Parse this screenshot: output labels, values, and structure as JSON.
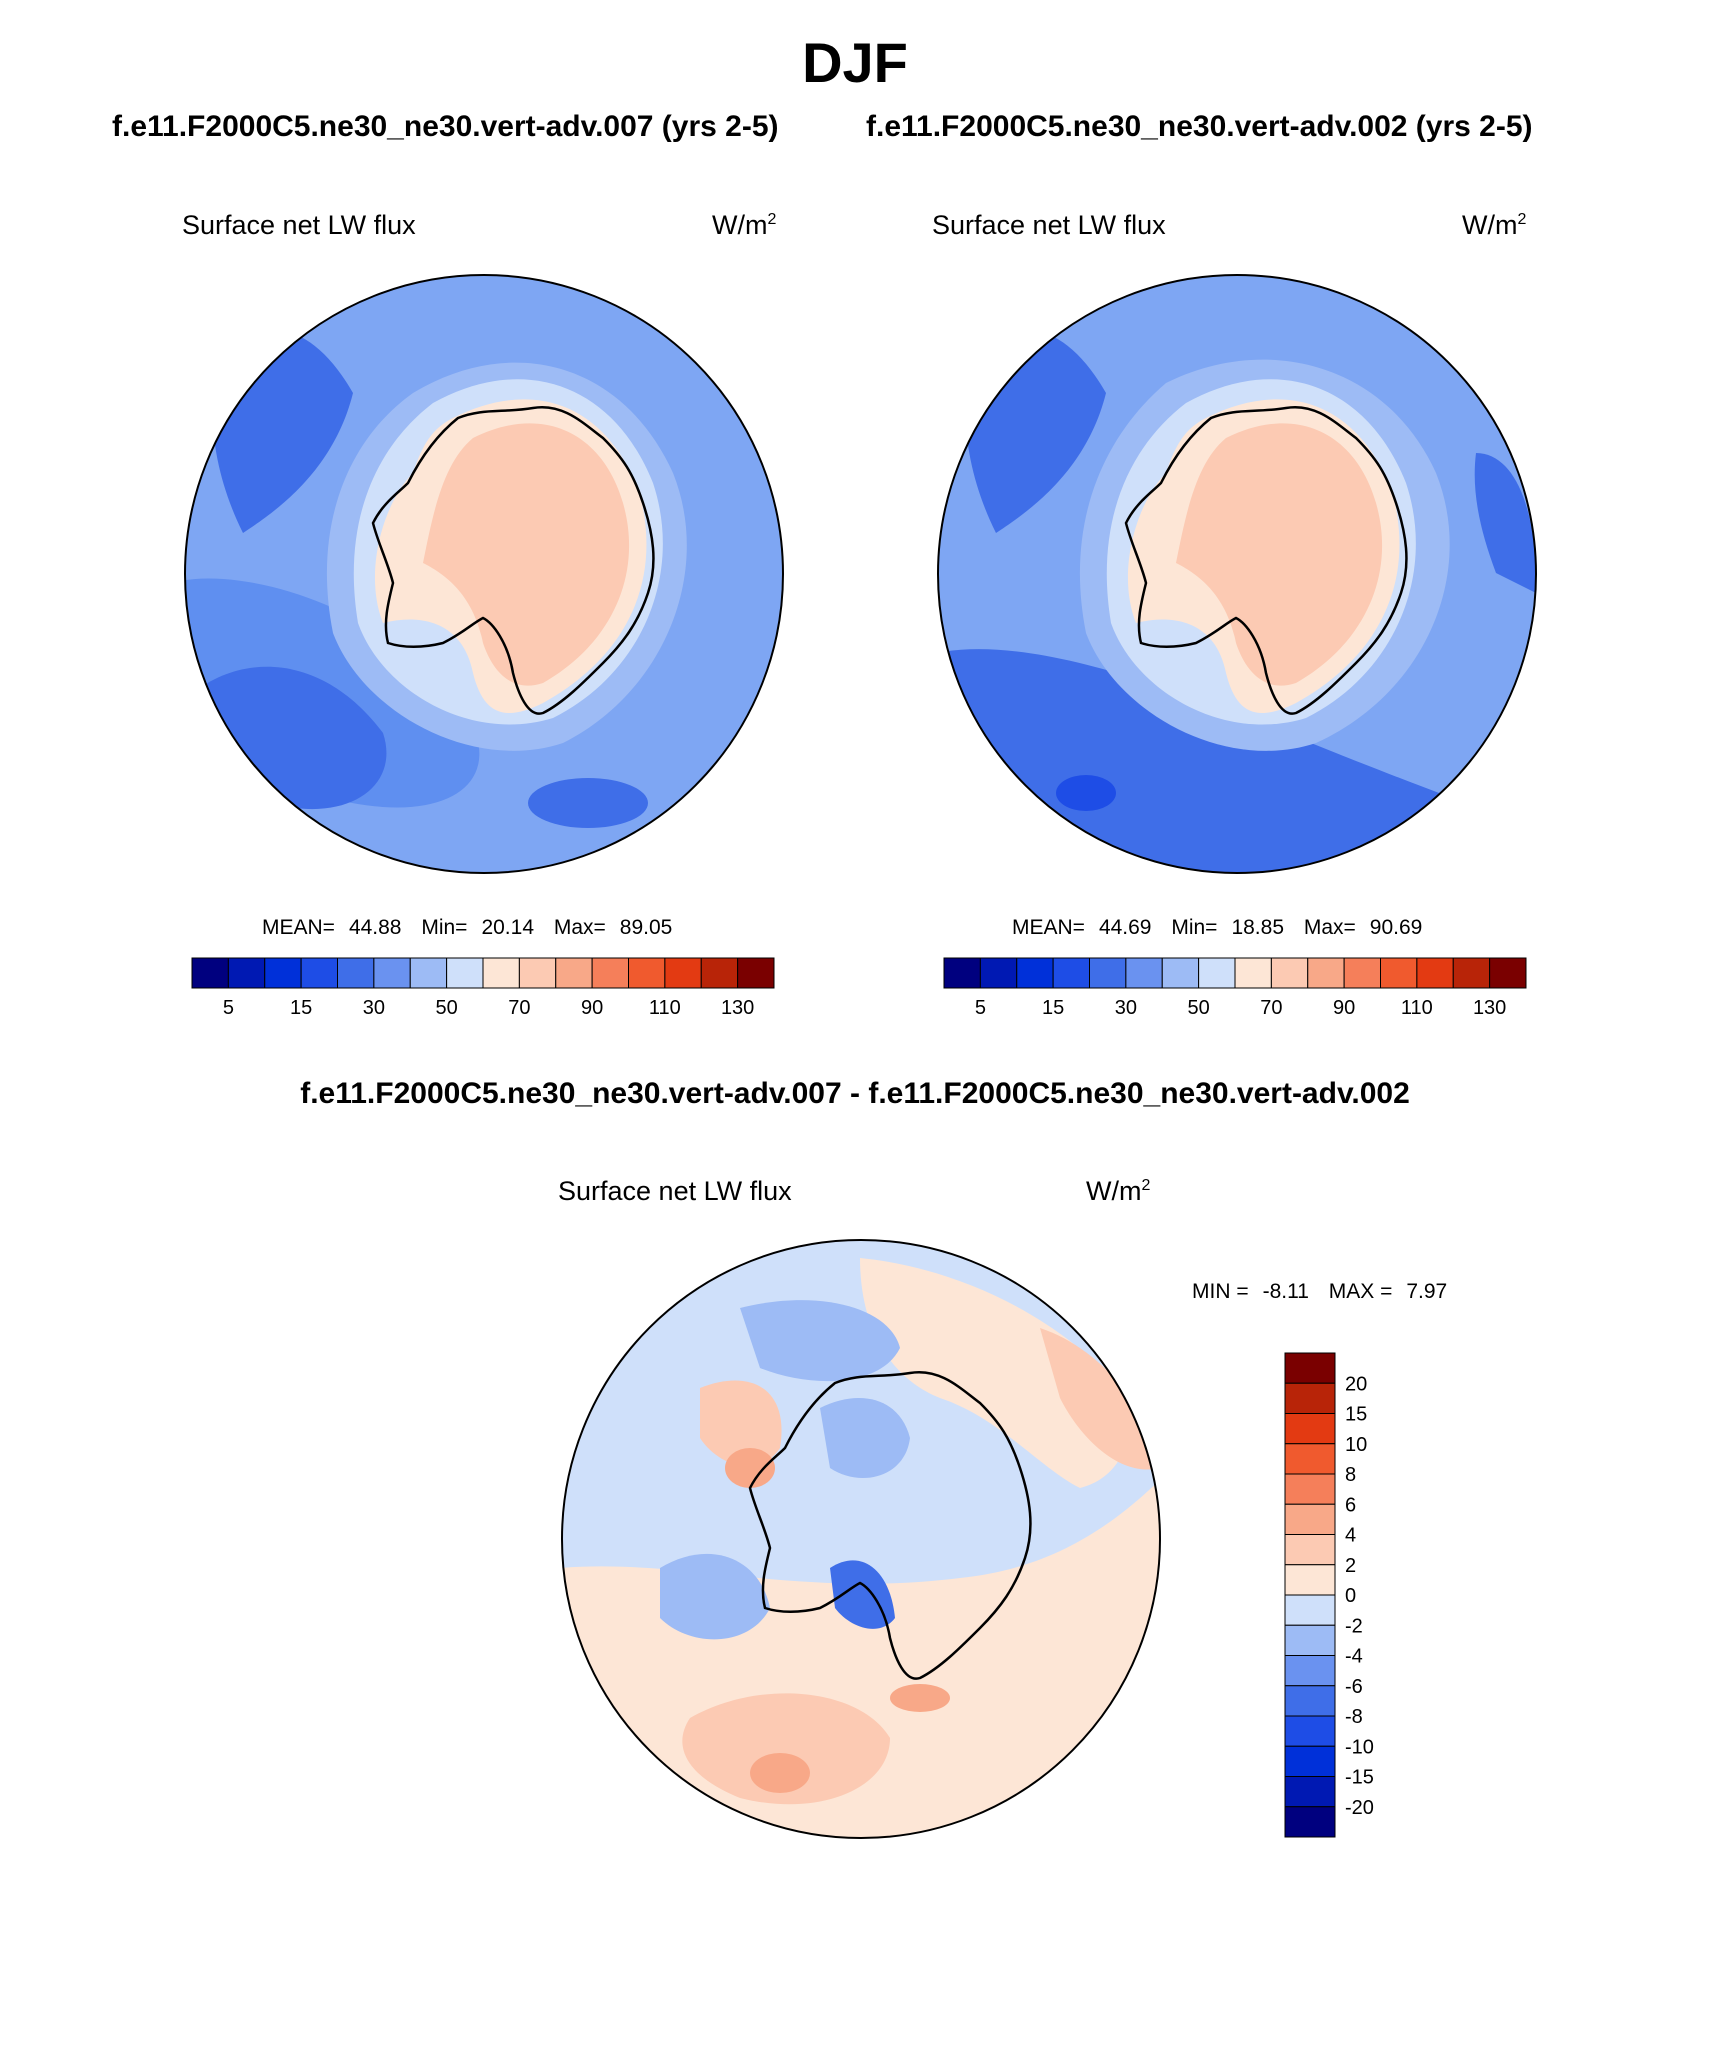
{
  "figure": {
    "season": "DJF",
    "case_left_title": "f.e11.F2000C5.ne30_ne30.vert-adv.007 (yrs 2-5)",
    "case_right_title": "f.e11.F2000C5.ne30_ne30.vert-adv.002 (yrs 2-5)",
    "difference_title": "f.e11.F2000C5.ne30_ne30.vert-adv.007 - f.e11.F2000C5.ne30_ne30.vert-adv.002"
  },
  "panels": [
    {
      "variable": "Surface net LW flux",
      "units_base": "W/m",
      "units_exp": "2",
      "stats": {
        "mean_label": "MEAN=",
        "mean": "44.88",
        "min_label": "Min=",
        "min": "20.14",
        "max_label": "Max=",
        "max": "89.05"
      }
    },
    {
      "variable": "Surface net LW flux",
      "units_base": "W/m",
      "units_exp": "2",
      "stats": {
        "mean_label": "MEAN=",
        "mean": "44.69",
        "min_label": "Min=",
        "min": "18.85",
        "max_label": "Max=",
        "max": "90.69"
      }
    },
    {
      "variable": "Surface net LW flux",
      "units_base": "W/m",
      "units_exp": "2",
      "stats": {
        "min_label": "MIN =",
        "min": "-8.11",
        "max_label": "MAX =",
        "max": "7.97"
      }
    }
  ],
  "colorbar_abs": {
    "labels": [
      "5",
      "15",
      "30",
      "50",
      "70",
      "90",
      "110",
      "130"
    ],
    "colors": [
      "#00007f",
      "#0019b3",
      "#0030d9",
      "#1e4de6",
      "#3f6ee8",
      "#6a92f0",
      "#9dbbf5",
      "#cfe0fa",
      "#fde6d6",
      "#fccab3",
      "#f8a888",
      "#f57f5a",
      "#f05a2e",
      "#e33a12",
      "#b82408",
      "#7a0000"
    ]
  },
  "colorbar_diff": {
    "labels": [
      "20",
      "15",
      "10",
      "8",
      "6",
      "4",
      "2",
      "0",
      "-2",
      "-4",
      "-6",
      "-8",
      "-10",
      "-15",
      "-20"
    ],
    "colors": [
      "#7a0000",
      "#b82408",
      "#e33a12",
      "#f05a2e",
      "#f57f5a",
      "#f8a888",
      "#fccab3",
      "#fde6d6",
      "#cfe0fa",
      "#9dbbf5",
      "#6a92f0",
      "#3f6ee8",
      "#1e4de6",
      "#0030d9",
      "#0019b3",
      "#00007f"
    ]
  },
  "map_colors": {
    "ocean_far": "#7ea6f3",
    "ocean_mid": "#5f8ff0",
    "ocean_dark": "#3f6ee8",
    "shelf": "#9dbbf5",
    "coast_ring": "#cfe0fa",
    "land_low": "#fde6d6",
    "land_high": "#fccab3",
    "diff_pos": "#fde6d6",
    "diff_neg": "#cfe0fa",
    "diff_pos2": "#fccab3",
    "diff_neg2": "#9dbbf5",
    "diff_pos3": "#f8a888",
    "diff_neg3": "#3f6ee8"
  }
}
